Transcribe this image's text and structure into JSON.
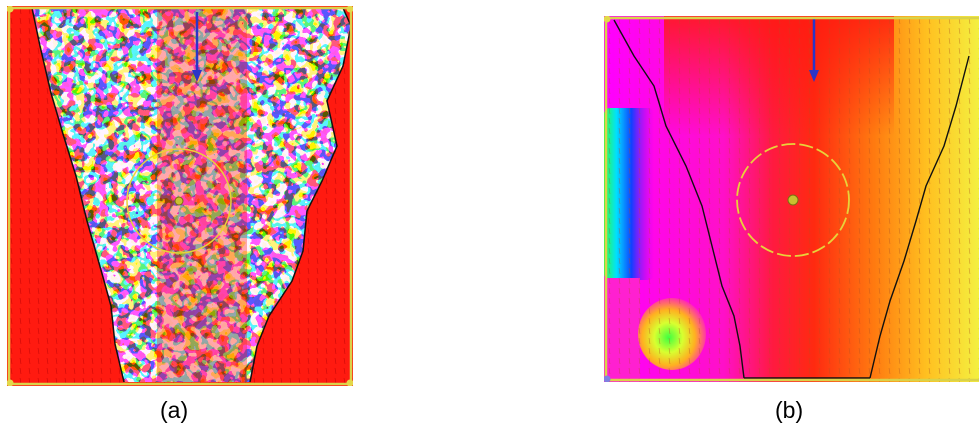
{
  "captions": {
    "a": "(a)",
    "b": "(b)"
  },
  "colors": {
    "red": "#ff1a10",
    "frame_yellow": "#d9d24a",
    "boundary_black": "#111111",
    "arrow_blue": "#2b35c8",
    "circle_yellow": "#e8d23a"
  }
}
